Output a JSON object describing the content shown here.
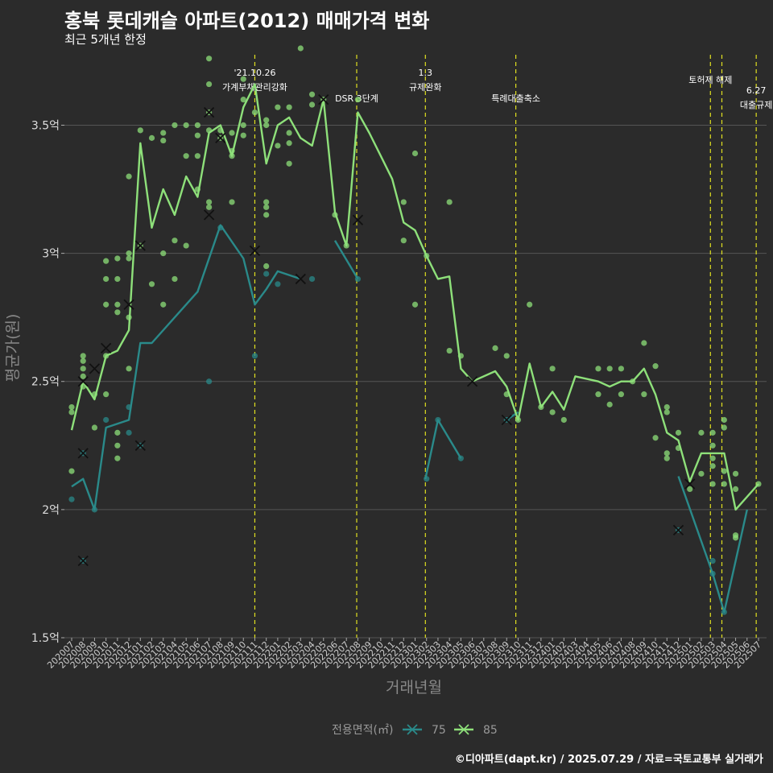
{
  "header": {
    "title": "홍북 롯데캐슬 아파트(2012) 매매가격 변화",
    "subtitle": "최근 5개년 한정"
  },
  "footer": {
    "credit": "©디아파트(dapt.kr) / 2025.07.29 / 자료=국토교통부 실거래가"
  },
  "chart_data": {
    "type": "line",
    "title": "홍북 롯데캐슬 아파트(2012) 매매가격 변화",
    "subtitle": "최근 5개년 한정",
    "xlabel": "거래년월",
    "ylabel": "평균가(원)",
    "ylim": [
      1.5,
      3.8
    ],
    "y_ticks": [
      1.5,
      2,
      2.5,
      3,
      3.5
    ],
    "y_tick_labels": [
      "1.5억",
      "2억",
      "2.5억",
      "3억",
      "3.5억"
    ],
    "grid": "horizontal",
    "legend": {
      "title": "전용면적(㎡)",
      "position": "bottom",
      "entries": [
        "75",
        "85"
      ]
    },
    "colors": {
      "75": "#2a8a8a",
      "85": "#8ee07a",
      "event": "#e0e020",
      "background": "#2b2b2b",
      "grid": "#555555"
    },
    "x_categories": [
      "202007",
      "202008",
      "202009",
      "202010",
      "202011",
      "202012",
      "202101",
      "202102",
      "202103",
      "202104",
      "202105",
      "202106",
      "202107",
      "202108",
      "202109",
      "202110",
      "202111",
      "202112",
      "202201",
      "202202",
      "202203",
      "202204",
      "202205",
      "202206",
      "202207",
      "202208",
      "202209",
      "202210",
      "202211",
      "202212",
      "202301",
      "202302",
      "202303",
      "202304",
      "202305",
      "202306",
      "202307",
      "202308",
      "202309",
      "202310",
      "202311",
      "202312",
      "202401",
      "202402",
      "202403",
      "202404",
      "202405",
      "202406",
      "202407",
      "202408",
      "202409",
      "202410",
      "202411",
      "202412",
      "202501",
      "202502",
      "202503",
      "202504",
      "202505",
      "202506",
      "202507"
    ],
    "events": [
      {
        "x": 16.0,
        "line1": "'21.10.26",
        "line2": "가계부채관리강화"
      },
      {
        "x": 24.9,
        "line1": "",
        "line2": "DSR 3단계"
      },
      {
        "x": 30.9,
        "line1": "1.3",
        "line2": "규제완화"
      },
      {
        "x": 38.8,
        "line1": "",
        "line2": "특례대출축소"
      },
      {
        "x": 55.8,
        "line1": "토허제 해제",
        "line2": ""
      },
      {
        "x": 56.8,
        "line1": "",
        "line2": ""
      },
      {
        "x": 59.8,
        "line1": "6.27",
        "line2": "대출규제"
      }
    ],
    "series": [
      {
        "name": "75",
        "segments": [
          [
            [
              0,
              2.09
            ],
            [
              1,
              2.12
            ],
            [
              2,
              2.0
            ],
            [
              3,
              2.32
            ],
            [
              5,
              2.35
            ],
            [
              6,
              2.65
            ],
            [
              7,
              2.65
            ],
            [
              11,
              2.85
            ],
            [
              13,
              3.11
            ],
            [
              15,
              2.98
            ],
            [
              16,
              2.8
            ],
            [
              17,
              2.86
            ],
            [
              18,
              2.93
            ],
            [
              20,
              2.9
            ]
          ],
          [
            [
              23,
              3.05
            ],
            [
              25,
              2.9
            ]
          ],
          [
            [
              30.9,
              2.12
            ],
            [
              32,
              2.35
            ],
            [
              34,
              2.2
            ]
          ],
          [
            [
              38,
              2.35
            ],
            [
              39,
              2.38
            ]
          ],
          [
            [
              53,
              2.13
            ],
            [
              56,
              1.75
            ],
            [
              57,
              1.6
            ],
            [
              59,
              2.0
            ]
          ]
        ],
        "points": [
          [
            0,
            2.04
          ],
          [
            1,
            2.22
          ],
          [
            1,
            1.8
          ],
          [
            2,
            2.0
          ],
          [
            3,
            2.35
          ],
          [
            5,
            2.4
          ],
          [
            5,
            2.3
          ],
          [
            6,
            2.25
          ],
          [
            12,
            2.5
          ],
          [
            13,
            3.1
          ],
          [
            16,
            2.6
          ],
          [
            17,
            2.92
          ],
          [
            18,
            2.88
          ],
          [
            21,
            2.9
          ],
          [
            25,
            2.9
          ],
          [
            31,
            2.12
          ],
          [
            32,
            2.35
          ],
          [
            34,
            2.2
          ],
          [
            38,
            2.35
          ],
          [
            53,
            1.92
          ],
          [
            56,
            1.8
          ],
          [
            56,
            1.75
          ],
          [
            57,
            1.6
          ]
        ],
        "markers": [
          [
            1,
            2.22
          ],
          [
            1,
            1.8
          ],
          [
            6,
            2.25
          ],
          [
            16,
            3.01
          ],
          [
            20,
            2.9
          ],
          [
            38,
            2.35
          ],
          [
            53,
            1.92
          ]
        ]
      },
      {
        "name": "85",
        "segments": [
          [
            [
              0,
              2.31
            ],
            [
              1,
              2.5
            ],
            [
              2,
              2.43
            ],
            [
              3,
              2.6
            ],
            [
              4,
              2.62
            ],
            [
              5,
              2.7
            ],
            [
              6,
              3.43
            ],
            [
              7,
              3.1
            ],
            [
              8,
              3.25
            ],
            [
              9,
              3.15
            ],
            [
              10,
              3.3
            ],
            [
              11,
              3.22
            ],
            [
              12,
              3.47
            ],
            [
              13,
              3.5
            ],
            [
              14,
              3.38
            ],
            [
              15,
              3.57
            ],
            [
              16,
              3.66
            ],
            [
              17,
              3.35
            ],
            [
              18,
              3.5
            ],
            [
              19,
              3.53
            ],
            [
              20,
              3.45
            ],
            [
              21,
              3.42
            ],
            [
              22,
              3.6
            ],
            [
              23,
              3.16
            ],
            [
              24,
              3.03
            ],
            [
              25,
              3.55
            ],
            [
              26,
              3.47
            ],
            [
              27,
              3.38
            ],
            [
              28,
              3.29
            ],
            [
              29,
              3.12
            ],
            [
              30,
              3.09
            ],
            [
              31,
              2.99
            ],
            [
              32,
              2.9
            ],
            [
              33,
              2.91
            ],
            [
              34,
              2.55
            ],
            [
              35,
              2.5
            ],
            [
              37,
              2.54
            ],
            [
              38,
              2.48
            ],
            [
              39,
              2.35
            ],
            [
              40,
              2.57
            ],
            [
              41,
              2.4
            ],
            [
              42,
              2.46
            ],
            [
              43,
              2.39
            ],
            [
              44,
              2.52
            ],
            [
              46,
              2.5
            ],
            [
              47,
              2.48
            ],
            [
              48,
              2.5
            ],
            [
              49,
              2.5
            ],
            [
              50,
              2.55
            ],
            [
              51,
              2.45
            ],
            [
              52,
              2.3
            ],
            [
              53,
              2.27
            ],
            [
              54,
              2.11
            ],
            [
              55,
              2.22
            ],
            [
              57,
              2.22
            ],
            [
              58,
              2.0
            ],
            [
              60,
              2.1
            ]
          ]
        ],
        "points": [
          [
            0,
            2.15
          ],
          [
            0,
            2.38
          ],
          [
            0,
            2.4
          ],
          [
            1,
            2.52
          ],
          [
            1,
            2.55
          ],
          [
            1,
            2.58
          ],
          [
            1,
            2.48
          ],
          [
            1,
            2.6
          ],
          [
            2,
            2.45
          ],
          [
            2,
            2.32
          ],
          [
            3,
            2.9
          ],
          [
            3,
            2.97
          ],
          [
            3,
            2.8
          ],
          [
            3,
            2.6
          ],
          [
            3,
            2.45
          ],
          [
            4,
            2.98
          ],
          [
            4,
            2.9
          ],
          [
            4,
            2.8
          ],
          [
            4,
            2.77
          ],
          [
            4,
            2.3
          ],
          [
            4,
            2.25
          ],
          [
            4,
            2.2
          ],
          [
            5,
            3.3
          ],
          [
            5,
            3.0
          ],
          [
            5,
            2.98
          ],
          [
            5,
            2.75
          ],
          [
            5,
            2.55
          ],
          [
            6,
            3.48
          ],
          [
            6,
            3.03
          ],
          [
            7,
            3.45
          ],
          [
            7,
            2.88
          ],
          [
            8,
            3.47
          ],
          [
            8,
            3.44
          ],
          [
            8,
            3.0
          ],
          [
            8,
            2.8
          ],
          [
            9,
            3.5
          ],
          [
            9,
            3.05
          ],
          [
            9,
            2.9
          ],
          [
            10,
            3.5
          ],
          [
            10,
            3.38
          ],
          [
            10,
            3.03
          ],
          [
            11,
            3.5
          ],
          [
            11,
            3.46
          ],
          [
            11,
            3.38
          ],
          [
            11,
            3.25
          ],
          [
            12,
            3.76
          ],
          [
            12,
            3.66
          ],
          [
            12,
            3.55
          ],
          [
            12,
            3.48
          ],
          [
            12,
            3.2
          ],
          [
            12,
            3.18
          ],
          [
            13,
            3.48
          ],
          [
            13,
            3.45
          ],
          [
            14,
            3.47
          ],
          [
            14,
            3.4
          ],
          [
            14,
            3.38
          ],
          [
            14,
            3.2
          ],
          [
            15,
            3.68
          ],
          [
            15,
            3.6
          ],
          [
            15,
            3.5
          ],
          [
            15,
            3.46
          ],
          [
            16,
            3.55
          ],
          [
            17,
            3.52
          ],
          [
            17,
            3.5
          ],
          [
            17,
            3.2
          ],
          [
            17,
            3.18
          ],
          [
            17,
            3.15
          ],
          [
            17,
            2.95
          ],
          [
            18,
            3.57
          ],
          [
            18,
            3.42
          ],
          [
            19,
            3.57
          ],
          [
            19,
            3.47
          ],
          [
            19,
            3.43
          ],
          [
            19,
            3.35
          ],
          [
            20,
            3.8
          ],
          [
            21,
            3.62
          ],
          [
            21,
            3.58
          ],
          [
            22,
            3.6
          ],
          [
            23,
            3.15
          ],
          [
            24,
            3.03
          ],
          [
            25,
            3.6
          ],
          [
            29,
            3.2
          ],
          [
            29,
            3.05
          ],
          [
            30,
            3.39
          ],
          [
            30,
            2.8
          ],
          [
            31,
            2.99
          ],
          [
            33,
            3.2
          ],
          [
            33,
            2.62
          ],
          [
            34,
            2.6
          ],
          [
            37,
            2.63
          ],
          [
            38,
            2.6
          ],
          [
            38,
            2.45
          ],
          [
            39,
            2.35
          ],
          [
            40,
            2.8
          ],
          [
            41,
            2.4
          ],
          [
            42,
            2.55
          ],
          [
            42,
            2.38
          ],
          [
            43,
            2.35
          ],
          [
            46,
            2.55
          ],
          [
            46,
            2.45
          ],
          [
            47,
            2.55
          ],
          [
            47,
            2.41
          ],
          [
            48,
            2.55
          ],
          [
            48,
            2.45
          ],
          [
            49,
            2.5
          ],
          [
            50,
            2.65
          ],
          [
            50,
            2.45
          ],
          [
            51,
            2.56
          ],
          [
            51,
            2.28
          ],
          [
            52,
            2.4
          ],
          [
            52,
            2.38
          ],
          [
            52,
            2.22
          ],
          [
            52,
            2.2
          ],
          [
            53,
            2.3
          ],
          [
            53,
            2.24
          ],
          [
            54,
            2.08
          ],
          [
            55,
            2.3
          ],
          [
            55,
            2.14
          ],
          [
            56,
            2.3
          ],
          [
            56,
            2.25
          ],
          [
            56,
            2.2
          ],
          [
            56,
            2.17
          ],
          [
            56,
            2.1
          ],
          [
            57,
            2.35
          ],
          [
            57,
            2.32
          ],
          [
            57,
            2.15
          ],
          [
            57,
            2.1
          ],
          [
            58,
            2.14
          ],
          [
            58,
            2.08
          ],
          [
            58,
            1.9
          ],
          [
            58,
            1.89
          ],
          [
            60,
            2.1
          ]
        ],
        "markers": [
          [
            1,
            2.5
          ],
          [
            2,
            2.55
          ],
          [
            3,
            2.63
          ],
          [
            5,
            2.8
          ],
          [
            6,
            3.03
          ],
          [
            12,
            3.15
          ],
          [
            12,
            3.55
          ],
          [
            13,
            3.45
          ],
          [
            22,
            3.6
          ],
          [
            25,
            3.13
          ],
          [
            35,
            2.5
          ],
          [
            54,
            2.1
          ]
        ]
      }
    ]
  }
}
